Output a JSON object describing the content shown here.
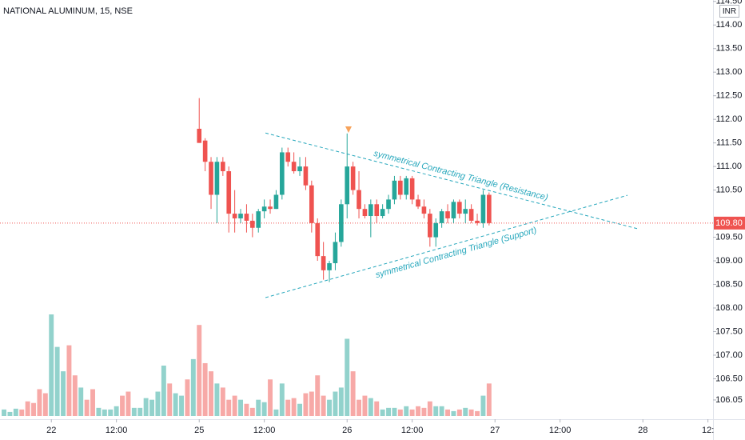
{
  "chart_data": {
    "type": "candlestick",
    "title": "NATIONAL ALUMINUM, 15, NSE",
    "currency": "INR",
    "up_color": "#26a69a",
    "down_color": "#ef5350",
    "xlim": [
      -0.68,
      119.86
    ],
    "xticks": [
      {
        "value": 8,
        "label": "22"
      },
      {
        "value": 19,
        "label": "12:00"
      },
      {
        "value": 33,
        "label": "25"
      },
      {
        "value": 44,
        "label": "12:00"
      },
      {
        "value": 58,
        "label": "26"
      },
      {
        "value": 69,
        "label": "12:00"
      },
      {
        "value": 83,
        "label": "27"
      },
      {
        "value": 94,
        "label": "12:00"
      },
      {
        "value": 108,
        "label": "28"
      },
      {
        "value": 119,
        "label": "12:"
      }
    ],
    "ylim": [
      105.71,
      114.53
    ],
    "yticks": [
      {
        "value": 106.05,
        "label": "106.05"
      },
      {
        "value": 106.5,
        "label": "106.50"
      },
      {
        "value": 107,
        "label": "107.00"
      },
      {
        "value": 107.5,
        "label": "107.50"
      },
      {
        "value": 108,
        "label": "108.00"
      },
      {
        "value": 108.5,
        "label": "108.50"
      },
      {
        "value": 109,
        "label": "109.00"
      },
      {
        "value": 109.5,
        "label": "109.50"
      },
      {
        "value": 110.5,
        "label": "110.50"
      },
      {
        "value": 111,
        "label": "111.00"
      },
      {
        "value": 111.5,
        "label": "111.50"
      },
      {
        "value": 112,
        "label": "112.00"
      },
      {
        "value": 112.5,
        "label": "112.50"
      },
      {
        "value": 113,
        "label": "113.00"
      },
      {
        "value": 113.5,
        "label": "113.50"
      },
      {
        "value": 114,
        "label": "114.00"
      },
      {
        "value": 114.5,
        "label": "114.50"
      }
    ],
    "open": [
      null,
      null,
      null,
      null,
      null,
      null,
      null,
      null,
      null,
      null,
      null,
      null,
      null,
      null,
      null,
      null,
      null,
      null,
      null,
      null,
      null,
      null,
      null,
      null,
      null,
      null,
      null,
      null,
      null,
      null,
      null,
      null,
      null,
      111.8,
      111.55,
      111.1,
      110.4,
      111.1,
      110.9,
      110.0,
      109.9,
      110.0,
      109.85,
      109.7,
      110.05,
      110.15,
      110.1,
      110.4,
      111.3,
      111.1,
      110.9,
      111.0,
      110.6,
      109.8,
      109.1,
      108.8,
      108.95,
      109.4,
      110.2,
      111.0,
      110.5,
      110.1,
      109.95,
      110.2,
      109.95,
      110.1,
      110.3,
      110.7,
      110.4,
      110.75,
      110.3,
      110.15,
      110.0,
      109.5,
      109.8,
      110.05,
      109.9,
      110.25,
      110.0,
      110.1,
      109.85,
      109.8,
      110.4
    ],
    "high": [
      null,
      null,
      null,
      null,
      null,
      null,
      null,
      null,
      null,
      null,
      null,
      null,
      null,
      null,
      null,
      null,
      null,
      null,
      null,
      null,
      null,
      null,
      null,
      null,
      null,
      null,
      null,
      null,
      null,
      null,
      null,
      null,
      null,
      112.45,
      111.6,
      111.2,
      111.2,
      111.2,
      111.0,
      110.5,
      110.1,
      110.2,
      110.0,
      110.1,
      110.3,
      110.3,
      110.5,
      111.4,
      111.4,
      111.3,
      111.2,
      111.2,
      110.7,
      109.9,
      109.4,
      109.0,
      109.6,
      110.3,
      111.7,
      111.1,
      110.9,
      110.2,
      110.3,
      110.3,
      110.2,
      110.4,
      110.8,
      110.8,
      110.8,
      110.8,
      110.4,
      110.3,
      110.1,
      109.9,
      110.1,
      110.2,
      110.3,
      110.3,
      110.3,
      110.2,
      110.0,
      110.5,
      110.45
    ],
    "low": [
      null,
      null,
      null,
      null,
      null,
      null,
      null,
      null,
      null,
      null,
      null,
      null,
      null,
      null,
      null,
      null,
      null,
      null,
      null,
      null,
      null,
      null,
      null,
      null,
      null,
      null,
      null,
      null,
      null,
      null,
      null,
      null,
      null,
      111.5,
      110.9,
      110.1,
      109.8,
      110.8,
      109.6,
      109.6,
      109.8,
      109.6,
      109.5,
      109.6,
      109.9,
      110.0,
      110.1,
      110.3,
      111.0,
      110.85,
      110.8,
      110.5,
      109.6,
      109.0,
      108.6,
      108.55,
      108.8,
      109.3,
      109.9,
      110.4,
      109.9,
      109.9,
      109.5,
      109.8,
      109.9,
      110.0,
      110.2,
      110.3,
      110.3,
      110.2,
      110.1,
      109.9,
      109.3,
      109.3,
      109.7,
      109.8,
      109.8,
      109.9,
      109.8,
      109.8,
      109.75,
      109.7,
      109.75
    ],
    "close": [
      null,
      null,
      null,
      null,
      null,
      null,
      null,
      null,
      null,
      null,
      null,
      null,
      null,
      null,
      null,
      null,
      null,
      null,
      null,
      null,
      null,
      null,
      null,
      null,
      null,
      null,
      null,
      null,
      null,
      null,
      null,
      null,
      null,
      111.5,
      111.1,
      110.4,
      111.1,
      110.9,
      110.0,
      109.9,
      110.0,
      109.85,
      109.7,
      110.05,
      110.15,
      110.1,
      110.4,
      111.3,
      111.1,
      110.9,
      111.0,
      110.6,
      109.8,
      109.1,
      108.8,
      108.95,
      109.4,
      110.2,
      111.0,
      110.5,
      110.1,
      109.95,
      110.2,
      109.95,
      110.1,
      110.3,
      110.7,
      110.4,
      110.75,
      110.3,
      110.15,
      110.0,
      109.5,
      109.8,
      110.05,
      109.9,
      110.25,
      110.0,
      110.1,
      109.85,
      109.8,
      110.4,
      109.8
    ],
    "volume": [
      8,
      5,
      9,
      8,
      18,
      16,
      33,
      28,
      125,
      85,
      55,
      87,
      50,
      35,
      20,
      33,
      10,
      8,
      8,
      12,
      25,
      30,
      10,
      10,
      22,
      20,
      30,
      62,
      40,
      28,
      25,
      45,
      70,
      112,
      65,
      55,
      40,
      35,
      20,
      25,
      20,
      15,
      10,
      20,
      17,
      45,
      8,
      40,
      20,
      22,
      15,
      28,
      30,
      50,
      25,
      20,
      30,
      35,
      95,
      55,
      20,
      25,
      22,
      18,
      8,
      10,
      10,
      8,
      12,
      8,
      12,
      10,
      18,
      12,
      12,
      8,
      6,
      8,
      10,
      8,
      6,
      25,
      40
    ],
    "volume_up": [
      1,
      1,
      1,
      0,
      0,
      0,
      0,
      0,
      1,
      1,
      1,
      0,
      0,
      1,
      0,
      0,
      1,
      1,
      1,
      1,
      0,
      0,
      1,
      1,
      1,
      1,
      1,
      1,
      0,
      1,
      1,
      0,
      1,
      0,
      0,
      0,
      1,
      0,
      0,
      0,
      1,
      0,
      0,
      1,
      1,
      0,
      1,
      1,
      0,
      0,
      1,
      0,
      0,
      0,
      0,
      1,
      1,
      1,
      1,
      0,
      0,
      0,
      1,
      0,
      1,
      1,
      1,
      0,
      1,
      0,
      0,
      0,
      0,
      1,
      1,
      0,
      1,
      0,
      1,
      0,
      0,
      1,
      0
    ],
    "last_price": {
      "value": 109.8,
      "label": "109.80"
    },
    "annotations": [
      {
        "text": "symmetrical Contracting Triangle (Resistance)",
        "x": [
          44.2,
          107.1
        ],
        "y": [
          111.71,
          109.68
        ]
      },
      {
        "text": "symmetrical Contracting Triangle (Support)",
        "x": [
          44.2,
          105.4
        ],
        "y": [
          108.22,
          110.39
        ]
      }
    ]
  }
}
